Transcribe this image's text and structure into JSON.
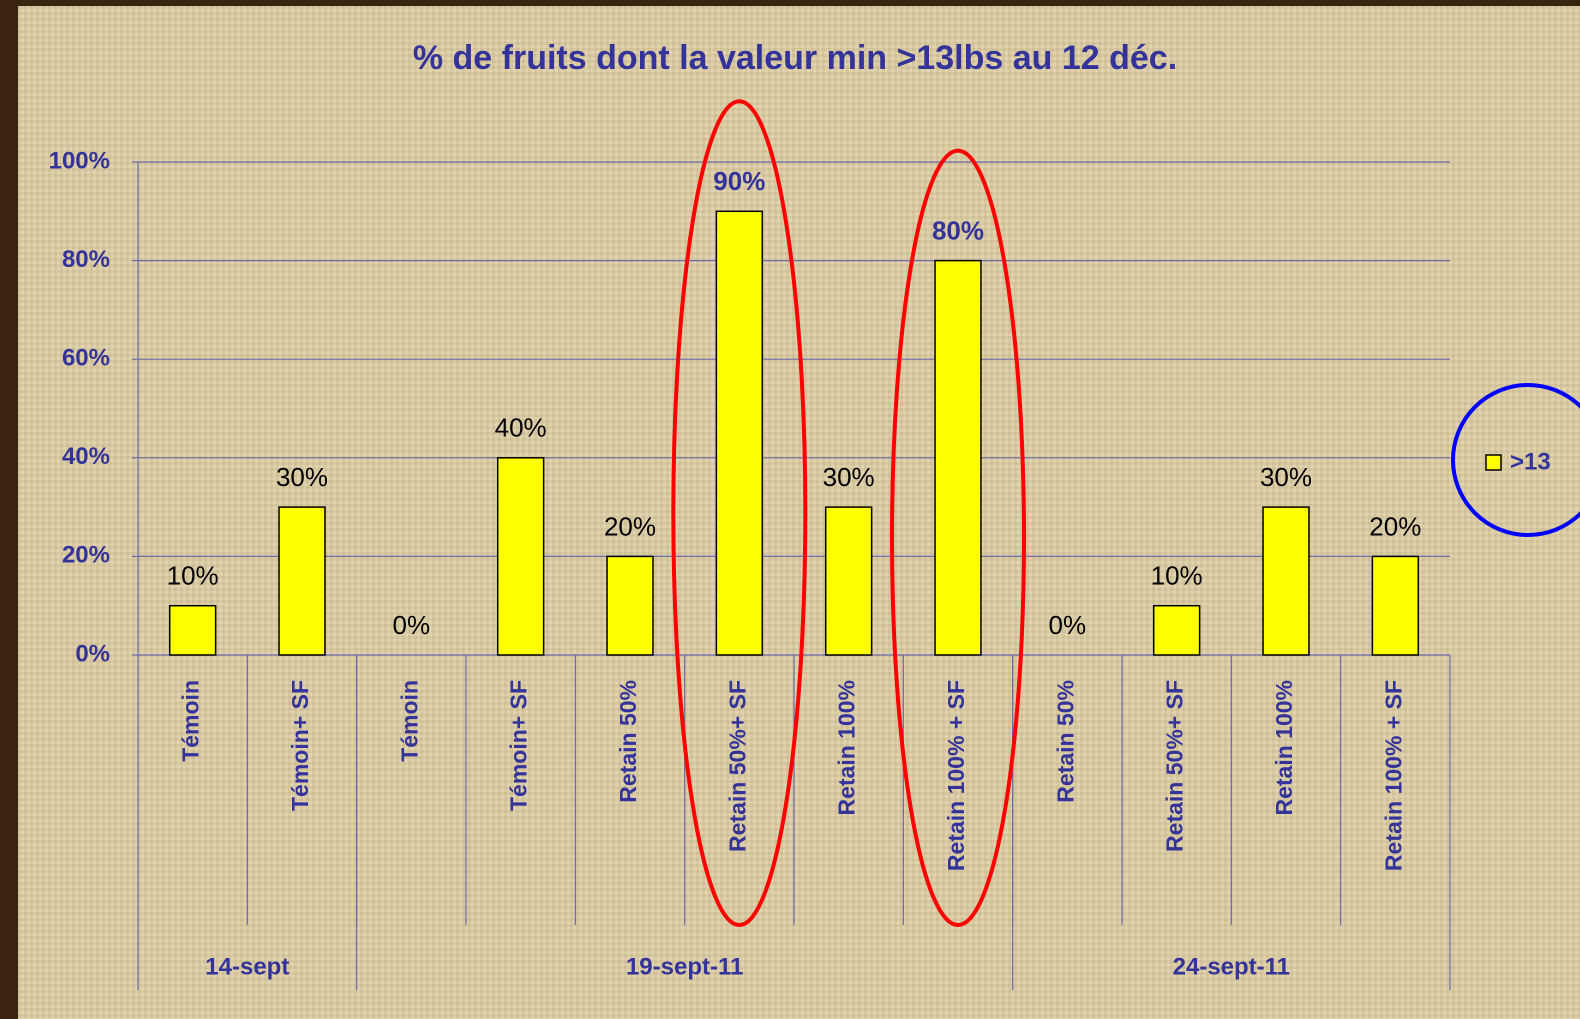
{
  "chart_data": {
    "type": "bar",
    "title": "% de fruits dont la valeur min >13lbs au 12 déc.",
    "categories": [
      "Témoin",
      "Témoin+ SF",
      "Témoin",
      "Témoin+ SF",
      "Retain 50%",
      "Retain 50%+ SF",
      "Retain 100%",
      "Retain 100% + SF",
      "Retain 50%",
      "Retain 50%+ SF",
      "Retain 100%",
      "Retain 100% + SF"
    ],
    "groups": [
      {
        "label": "14-sept",
        "span": [
          0,
          1
        ]
      },
      {
        "label": "19-sept-11",
        "span": [
          2,
          7
        ]
      },
      {
        "label": "24-sept-11",
        "span": [
          8,
          11
        ]
      }
    ],
    "series": [
      {
        "name": ">13",
        "color": "#ffff00",
        "values": [
          10,
          30,
          0,
          40,
          20,
          90,
          30,
          80,
          0,
          10,
          30,
          20
        ],
        "value_labels": [
          "10%",
          "30%",
          "0%",
          "40%",
          "20%",
          "90%",
          "30%",
          "80%",
          "0%",
          "10%",
          "30%",
          "20%"
        ]
      }
    ],
    "highlight": [
      5,
      7
    ],
    "ylim": [
      0,
      100
    ],
    "yticks": [
      {
        "value": 0,
        "label": "0%"
      },
      {
        "value": 20,
        "label": "20%"
      },
      {
        "value": 40,
        "label": "40%"
      },
      {
        "value": 60,
        "label": "60%"
      },
      {
        "value": 80,
        "label": "80%"
      },
      {
        "value": 100,
        "label": "100%"
      }
    ],
    "grid": true,
    "legend": "right"
  }
}
